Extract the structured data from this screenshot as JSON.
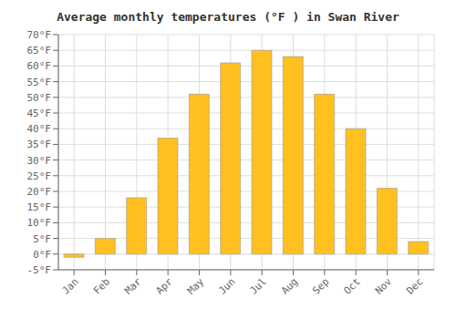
{
  "chart_data": {
    "type": "bar",
    "title": "Average monthly temperatures (°F ) in Swan River",
    "categories": [
      "Jan",
      "Feb",
      "Mar",
      "Apr",
      "May",
      "Jun",
      "Jul",
      "Aug",
      "Sep",
      "Oct",
      "Nov",
      "Dec"
    ],
    "values": [
      -1,
      5,
      18,
      37,
      51,
      61,
      65,
      63,
      51,
      40,
      21,
      4
    ],
    "color": "#FFC020",
    "ylim": [
      -5,
      70
    ],
    "yticks": [
      {
        "value": -5,
        "label": "-5°F"
      },
      {
        "value": 0,
        "label": "0°F"
      },
      {
        "value": 5,
        "label": "5°F"
      },
      {
        "value": 10,
        "label": "10°F"
      },
      {
        "value": 15,
        "label": "15°F"
      },
      {
        "value": 20,
        "label": "20°F"
      },
      {
        "value": 25,
        "label": "25°F"
      },
      {
        "value": 30,
        "label": "30°F"
      },
      {
        "value": 35,
        "label": "35°F"
      },
      {
        "value": 40,
        "label": "40°F"
      },
      {
        "value": 45,
        "label": "45°F"
      },
      {
        "value": 50,
        "label": "50°F"
      },
      {
        "value": 55,
        "label": "55°F"
      },
      {
        "value": 60,
        "label": "60°F"
      },
      {
        "value": 65,
        "label": "65°F"
      },
      {
        "value": 70,
        "label": "70°F"
      }
    ],
    "grid": true
  }
}
